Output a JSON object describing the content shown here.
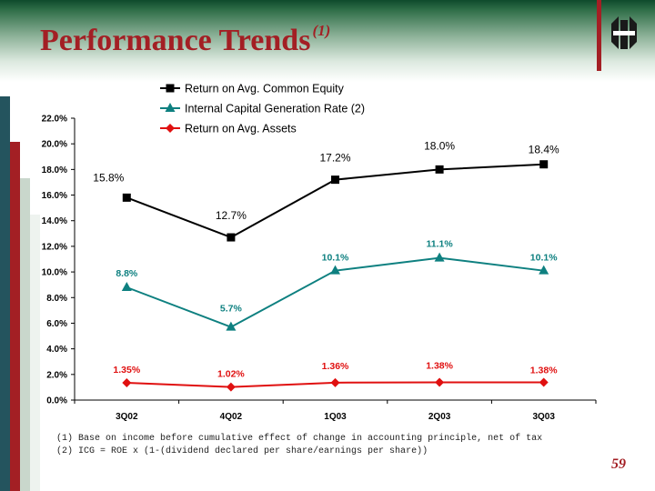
{
  "slide": {
    "title": "Performance Trends",
    "title_superscript": "(1)",
    "page_number": "59",
    "footnotes": [
      "(1)  Base on income before cumulative effect of change in accounting principle, net of tax",
      "(2)  ICG = ROE x (1-(dividend declared per share/earnings per share))"
    ],
    "colors": {
      "title": "#a31f24",
      "band": "#2f6e48"
    }
  },
  "chart_data": {
    "type": "line",
    "categories": [
      "3Q02",
      "4Q02",
      "1Q03",
      "2Q03",
      "3Q03"
    ],
    "ylim": [
      0,
      22
    ],
    "y_ticks": [
      "0.0%",
      "2.0%",
      "4.0%",
      "6.0%",
      "8.0%",
      "10.0%",
      "12.0%",
      "14.0%",
      "16.0%",
      "18.0%",
      "20.0%",
      "22.0%"
    ],
    "series": [
      {
        "name": "Return on Avg. Common Equity",
        "values": [
          15.8,
          12.7,
          17.2,
          18.0,
          18.4
        ],
        "labels": [
          "15.8%",
          "12.7%",
          "17.2%",
          "18.0%",
          "18.4%"
        ],
        "color": "#000000",
        "marker": "square"
      },
      {
        "name": "Internal Capital Generation Rate (2)",
        "values": [
          8.8,
          5.7,
          10.1,
          11.1,
          10.1
        ],
        "labels": [
          "8.8%",
          "5.7%",
          "10.1%",
          "11.1%",
          "10.1%"
        ],
        "color": "#0e8080",
        "marker": "triangle"
      },
      {
        "name": "Return on Avg. Assets",
        "values": [
          1.35,
          1.02,
          1.36,
          1.38,
          1.38
        ],
        "labels": [
          "1.35%",
          "1.02%",
          "1.36%",
          "1.38%",
          "1.38%"
        ],
        "color": "#e01010",
        "marker": "diamond"
      }
    ],
    "legend": "top-center"
  }
}
